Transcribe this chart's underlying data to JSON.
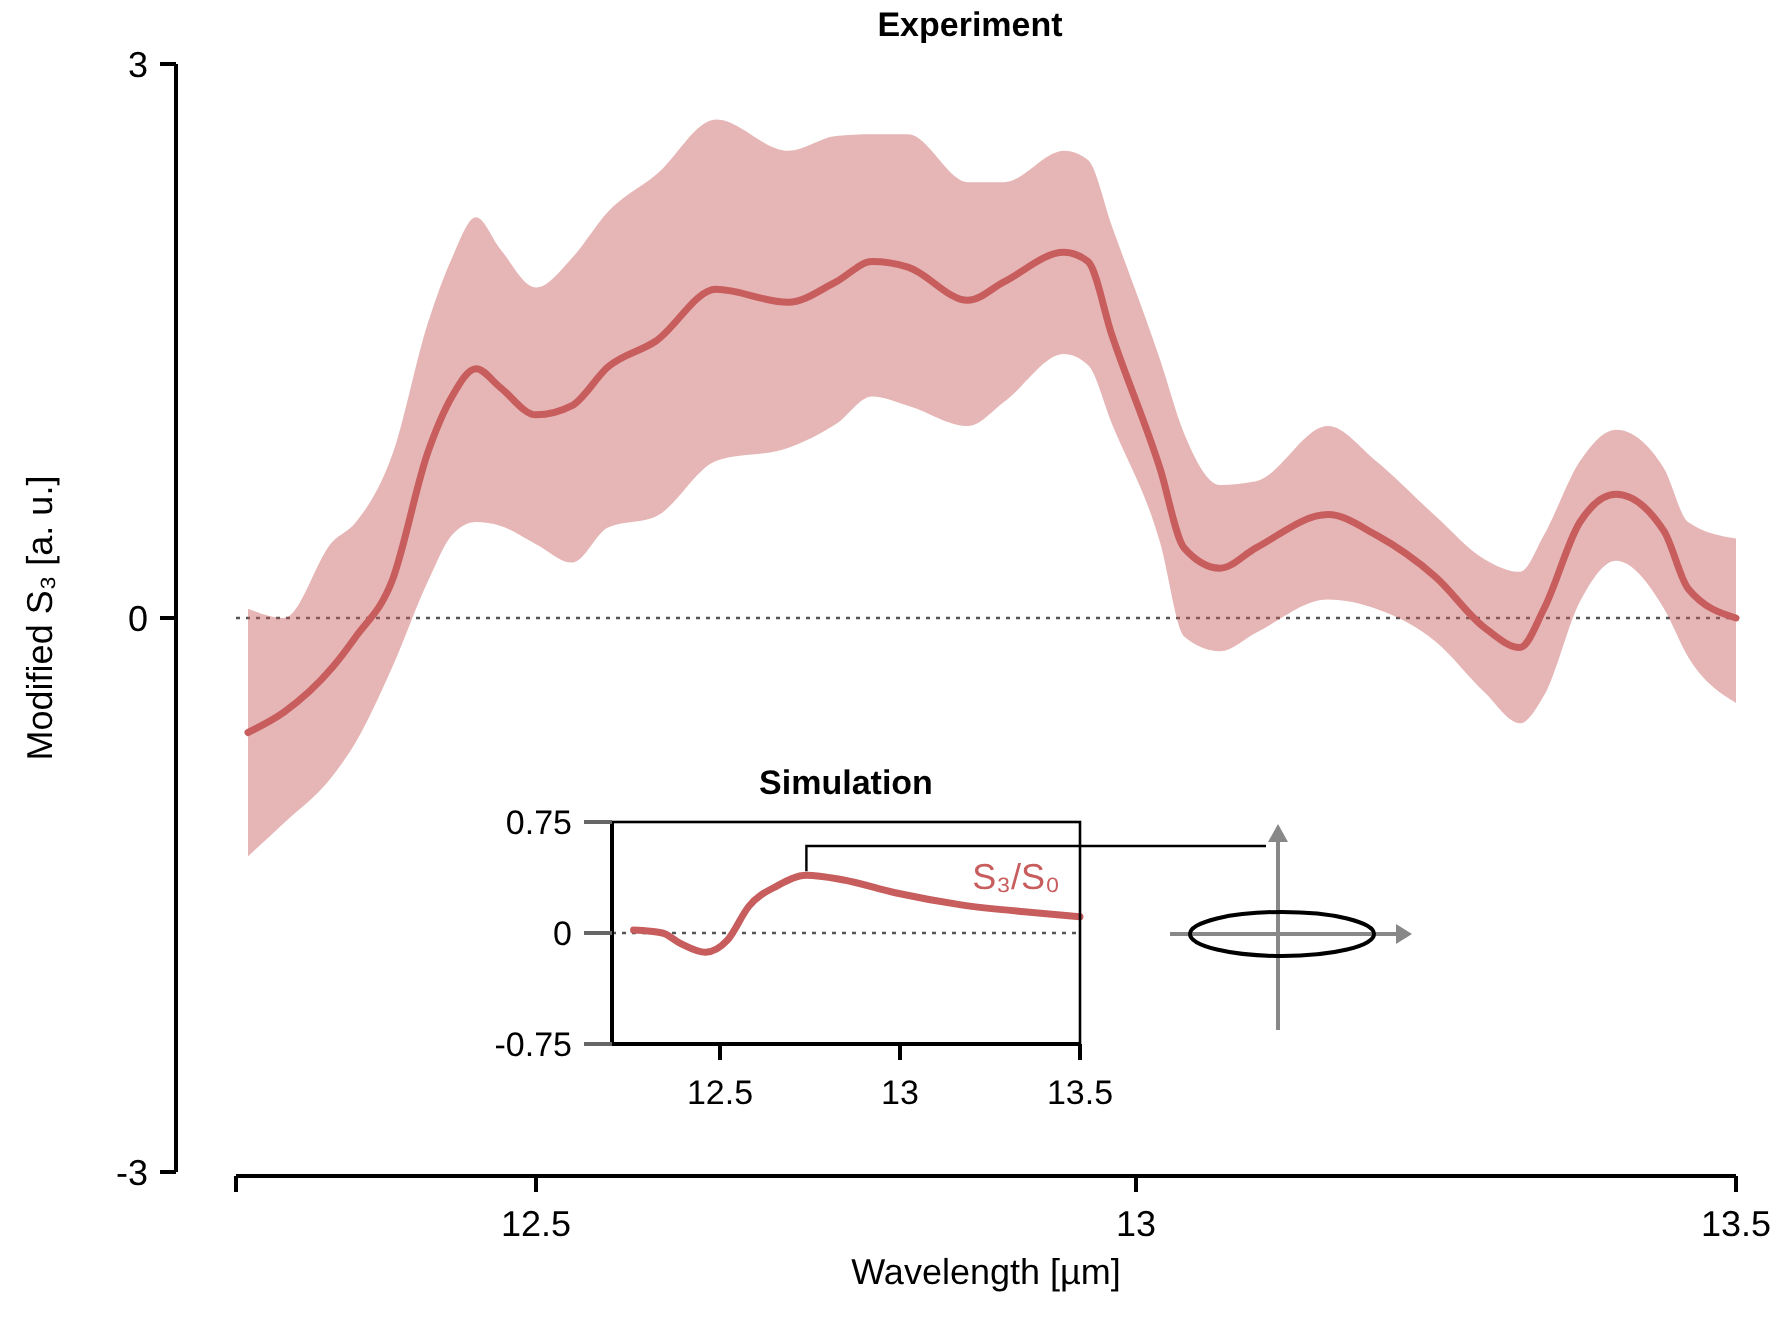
{
  "chart_data": [
    {
      "type": "line",
      "title": "Experiment",
      "xlabel": "Wavelength [µm]",
      "ylabel": "Modified S₃ [a. u.]",
      "x": [
        12.26,
        12.29,
        12.33,
        12.35,
        12.38,
        12.41,
        12.43,
        12.45,
        12.47,
        12.5,
        12.53,
        12.56,
        12.6,
        12.65,
        12.71,
        12.75,
        12.78,
        12.81,
        12.86,
        12.89,
        12.94,
        12.96,
        12.98,
        13.02,
        13.04,
        13.07,
        13.1,
        13.16,
        13.2,
        13.25,
        13.29,
        13.32,
        13.34,
        13.37,
        13.4,
        13.44,
        13.46,
        13.5
      ],
      "series": [
        {
          "color": "#c85d5d",
          "values": [
            -0.62,
            -0.51,
            -0.27,
            -0.1,
            0.2,
            0.9,
            1.2,
            1.35,
            1.25,
            1.1,
            1.15,
            1.36,
            1.5,
            1.78,
            1.71,
            1.82,
            1.93,
            1.9,
            1.72,
            1.82,
            1.98,
            1.93,
            1.53,
            0.81,
            0.38,
            0.27,
            0.38,
            0.56,
            0.45,
            0.22,
            -0.05,
            -0.16,
            0.05,
            0.52,
            0.67,
            0.47,
            0.16,
            0.0
          ],
          "upper": [
            0.05,
            0.0,
            0.41,
            0.52,
            0.88,
            1.6,
            1.95,
            2.17,
            2.0,
            1.79,
            1.95,
            2.2,
            2.4,
            2.7,
            2.53,
            2.61,
            2.62,
            2.62,
            2.36,
            2.36,
            2.53,
            2.48,
            2.12,
            1.4,
            1.0,
            0.72,
            0.74,
            1.04,
            0.85,
            0.55,
            0.32,
            0.25,
            0.45,
            0.85,
            1.02,
            0.81,
            0.52,
            0.43
          ],
          "lower": [
            -1.29,
            -1.11,
            -0.86,
            -0.67,
            -0.27,
            0.2,
            0.45,
            0.52,
            0.5,
            0.4,
            0.3,
            0.49,
            0.55,
            0.85,
            0.92,
            1.05,
            1.2,
            1.15,
            1.04,
            1.17,
            1.43,
            1.37,
            1.05,
            0.41,
            -0.1,
            -0.18,
            -0.08,
            0.1,
            0.05,
            -0.13,
            -0.4,
            -0.57,
            -0.42,
            0.09,
            0.31,
            0.05,
            -0.21,
            -0.46
          ]
        }
      ],
      "xlim": [
        12.25,
        13.5
      ],
      "xticks": [
        {
          "value": 12.25,
          "label": null
        },
        12.5,
        13,
        13.5
      ],
      "ylim": [
        -3,
        3
      ],
      "yticks": [
        -3,
        0,
        3
      ],
      "ref_lines": [
        {
          "axis": "y",
          "value": 0,
          "color": "#555555",
          "line_style": "dotted"
        }
      ]
    },
    {
      "type": "line",
      "title": "Simulation",
      "x": [
        12.26,
        12.34,
        12.39,
        12.46,
        12.52,
        12.58,
        12.66,
        12.74,
        12.84,
        12.99,
        13.17,
        13.36,
        13.5
      ],
      "series": [
        {
          "name": "S₃/S₀",
          "color": "#c85d5d",
          "values": [
            0.02,
            0.0,
            -0.07,
            -0.13,
            -0.05,
            0.18,
            0.32,
            0.39,
            0.36,
            0.27,
            0.19,
            0.14,
            0.11
          ]
        }
      ],
      "xlim": [
        12.2,
        13.5
      ],
      "xticks": [
        12.5,
        13,
        13.5
      ],
      "ylim": [
        -0.75,
        0.75
      ],
      "yticks": [
        -0.75,
        0,
        0.75
      ],
      "ref_lines": [
        {
          "axis": "y",
          "value": 0,
          "color": "#555555",
          "line_style": "dotted"
        }
      ]
    }
  ]
}
